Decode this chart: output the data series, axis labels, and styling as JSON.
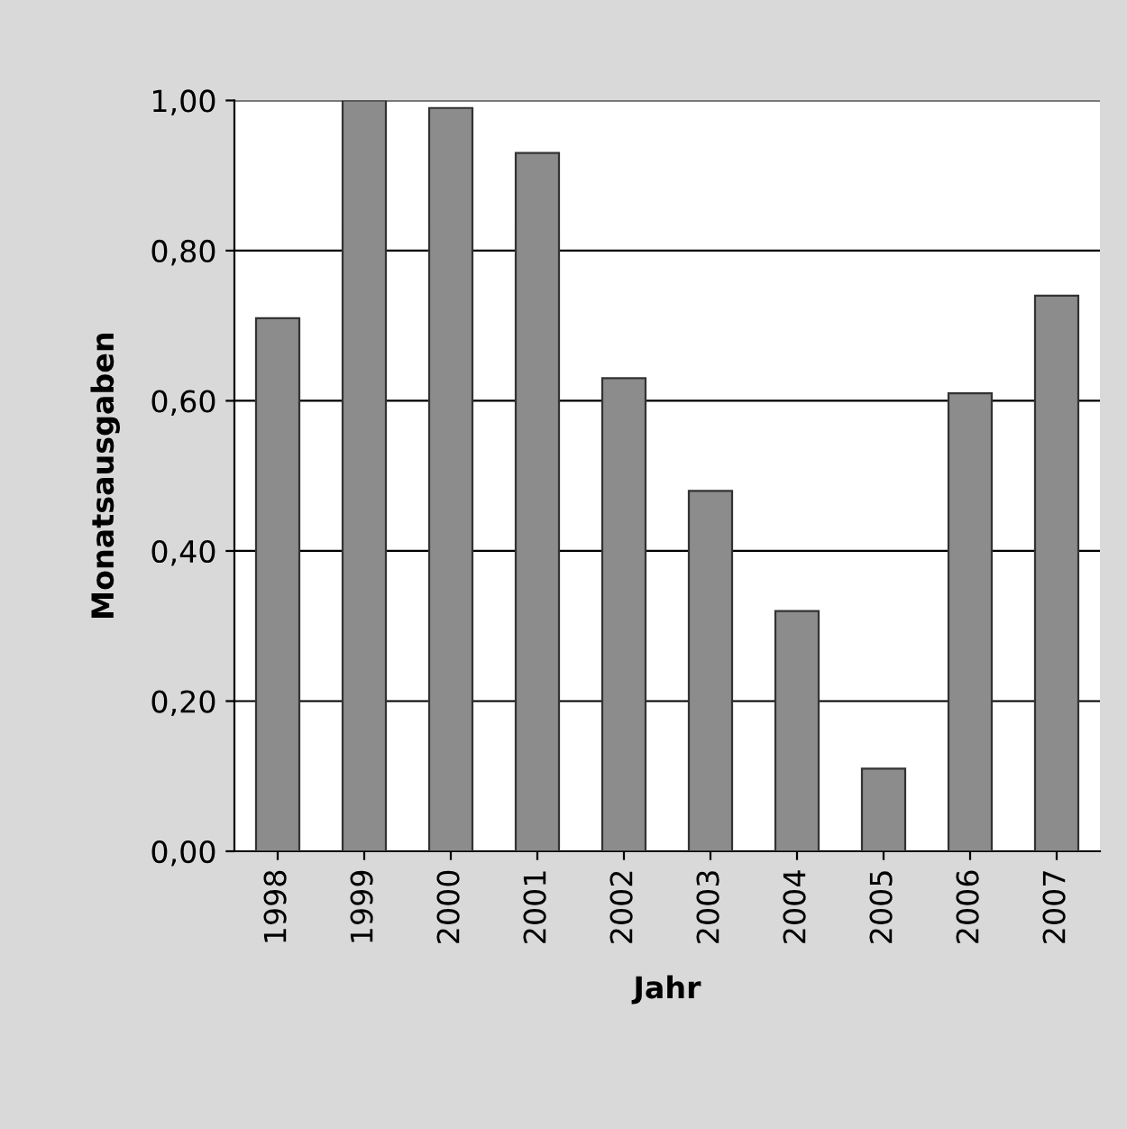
{
  "chart_data": {
    "type": "bar",
    "xlabel": "Jahr",
    "ylabel": "Monatsausgaben",
    "categories": [
      "1998",
      "1999",
      "2000",
      "2001",
      "2002",
      "2003",
      "2004",
      "2005",
      "2006",
      "2007"
    ],
    "values": [
      0.71,
      1.0,
      0.99,
      0.93,
      0.63,
      0.48,
      0.32,
      0.11,
      0.61,
      0.74
    ],
    "color": "#8c8c8c",
    "ylim": [
      0,
      1
    ],
    "yticks": [
      {
        "value": 0,
        "label": "0,00"
      },
      {
        "value": 0.2,
        "label": "0,20"
      },
      {
        "value": 0.4,
        "label": "0,40"
      },
      {
        "value": 0.6,
        "label": "0,60"
      },
      {
        "value": 0.8,
        "label": "0,80"
      },
      {
        "value": 1,
        "label": "1,00"
      }
    ],
    "grid": "y"
  }
}
